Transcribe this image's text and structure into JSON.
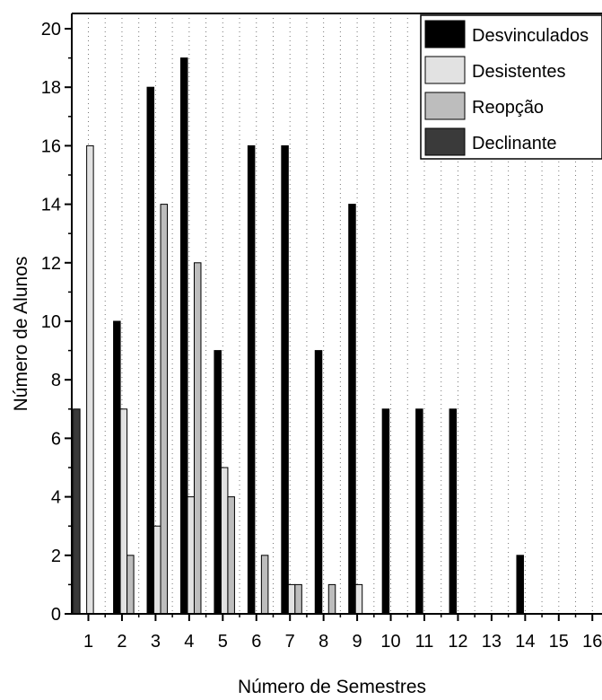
{
  "chart_data": {
    "type": "bar",
    "xlabel": "Número de Semestres",
    "ylabel": "Número de Alunos",
    "categories": [
      "1",
      "2",
      "3",
      "4",
      "5",
      "6",
      "7",
      "8",
      "9",
      "10",
      "11",
      "12",
      "13",
      "14",
      "15",
      "16"
    ],
    "ylim": [
      0,
      20
    ],
    "yticks": [
      "0",
      "2",
      "4",
      "6",
      "8",
      "10",
      "12",
      "14",
      "16",
      "18",
      "20"
    ],
    "grid": "vertical dotted",
    "legend_position": "top-right",
    "series": [
      {
        "name": "Desvinculados",
        "color": "#000000",
        "values": [
          null,
          10,
          18,
          19,
          9,
          16,
          16,
          9,
          14,
          7,
          7,
          7,
          null,
          2,
          null,
          null
        ]
      },
      {
        "name": "Desistentes",
        "color": "#e2e2e2",
        "values": [
          16,
          7,
          3,
          4,
          5,
          null,
          1,
          null,
          1,
          null,
          null,
          null,
          null,
          null,
          null,
          null
        ]
      },
      {
        "name": "Reopção",
        "color": "#bdbdbd",
        "values": [
          null,
          2,
          14,
          12,
          4,
          2,
          1,
          1,
          null,
          null,
          null,
          null,
          null,
          null,
          null,
          null
        ]
      },
      {
        "name": "Declinante",
        "color": "#3a3a3a",
        "values": [
          7,
          null,
          null,
          null,
          null,
          null,
          null,
          null,
          null,
          null,
          null,
          null,
          null,
          null,
          null,
          null
        ]
      }
    ]
  }
}
